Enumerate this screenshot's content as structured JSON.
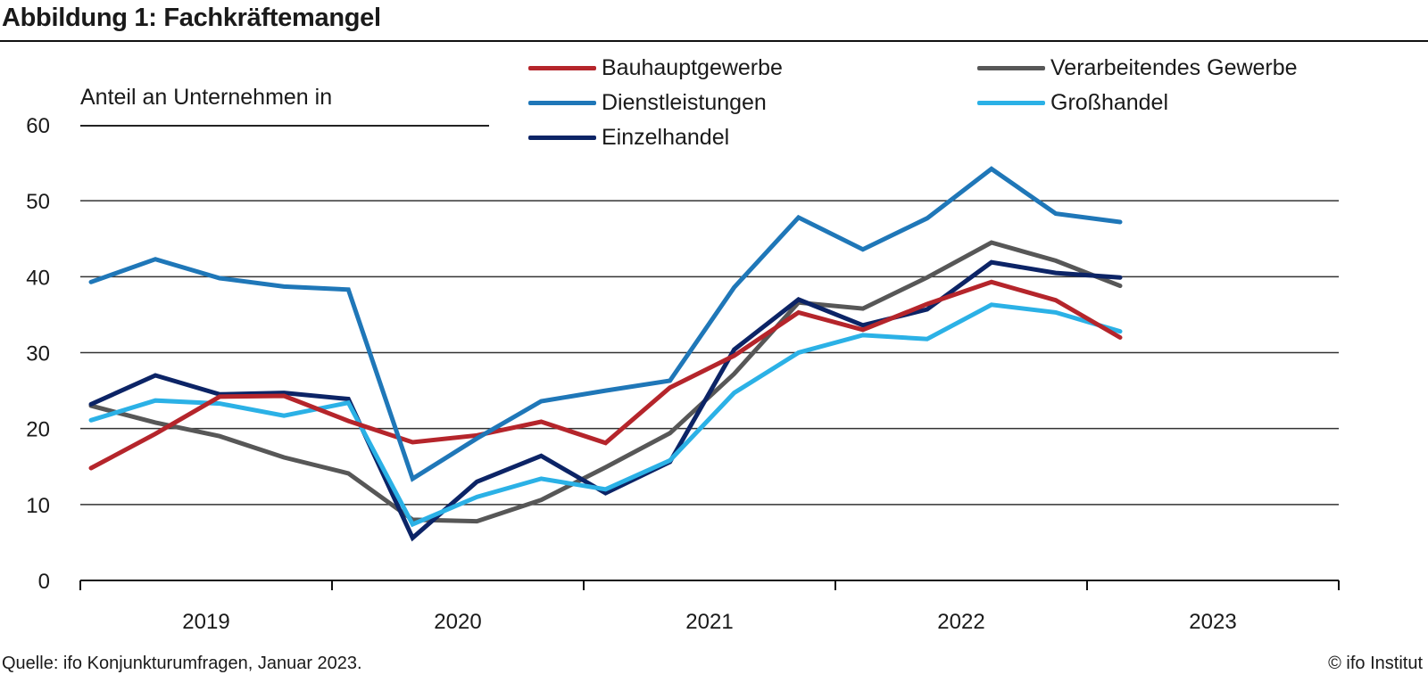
{
  "header": {
    "title": "Abbildung 1: Fachkräftemangel"
  },
  "footer": {
    "source": "Quelle: ifo Konjunkturumfragen, Januar 2023.",
    "copyright": "© ifo Institut"
  },
  "chart_data": {
    "type": "line",
    "title": "Abbildung 1: Fachkräftemangel",
    "ylabel": "Anteil an Unternehmen in",
    "xlabel": "",
    "ylim": [
      0,
      60
    ],
    "yticks": [
      "0",
      "10",
      "20",
      "30",
      "40",
      "50",
      "60"
    ],
    "xlim": [
      2019,
      2024
    ],
    "xtick_labels": [
      "2019",
      "2020",
      "2021",
      "2022",
      "2023"
    ],
    "grid": true,
    "legend_position": "top-right",
    "x": [
      "2019-Q1",
      "2019-Q2",
      "2019-Q3",
      "2019-Q4",
      "2020-Q1",
      "2020-Q2",
      "2020-Q3",
      "2020-Q4",
      "2021-Q1",
      "2021-Q2",
      "2021-Q3",
      "2021-Q4",
      "2022-Q1",
      "2022-Q2",
      "2022-Q3",
      "2022-Q4",
      "2023-Q1"
    ],
    "series": [
      {
        "name": "Bauhauptgewerbe",
        "color": "#b5252b",
        "values": [
          14.8,
          19.3,
          24.2,
          24.3,
          21.0,
          18.2,
          19.1,
          20.9,
          18.1,
          25.4,
          29.6,
          35.3,
          33.0,
          36.4,
          39.3,
          36.9,
          32.0
        ]
      },
      {
        "name": "Verarbeitendes Gewerbe",
        "color": "#575757",
        "values": [
          23.0,
          20.8,
          19.0,
          16.2,
          14.1,
          8.0,
          7.8,
          10.6,
          14.9,
          19.4,
          27.2,
          36.6,
          35.8,
          39.9,
          44.5,
          42.1,
          38.8
        ]
      },
      {
        "name": "Dienstleistungen",
        "color": "#1f77b8",
        "values": [
          39.3,
          42.3,
          39.8,
          38.7,
          38.3,
          13.4,
          18.7,
          23.6,
          25.0,
          26.3,
          38.6,
          47.8,
          43.6,
          47.7,
          54.2,
          48.3,
          47.2
        ]
      },
      {
        "name": "Großhandel",
        "color": "#2bb1e6",
        "values": [
          21.1,
          23.7,
          23.3,
          21.7,
          23.4,
          7.4,
          11.0,
          13.4,
          12.0,
          15.8,
          24.7,
          30.0,
          32.3,
          31.8,
          36.3,
          35.3,
          32.8
        ]
      },
      {
        "name": "Einzelhandel",
        "color": "#0c2466",
        "values": [
          23.2,
          27.0,
          24.5,
          24.7,
          23.9,
          5.6,
          13.0,
          16.4,
          11.5,
          15.6,
          30.4,
          37.0,
          33.6,
          35.7,
          41.9,
          40.5,
          39.9
        ]
      }
    ]
  }
}
